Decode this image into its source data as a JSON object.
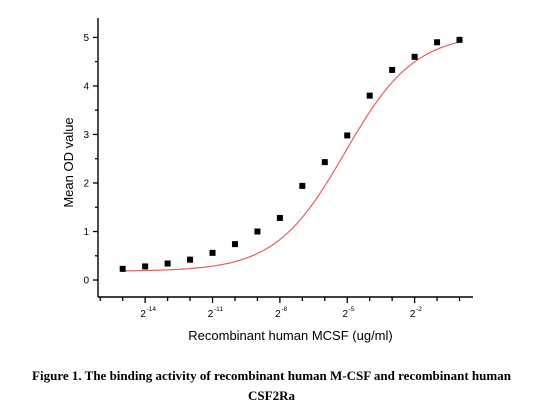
{
  "chart_data": {
    "type": "scatter",
    "fit_line": true,
    "xlabel": "Recombinant human  MCSF (ug/ml)",
    "ylabel": "Mean OD value",
    "x_scale": "log2",
    "x_tick_labels": [
      {
        "base": "2",
        "exp": "-14",
        "log2": -14
      },
      {
        "base": "2",
        "exp": "-11",
        "log2": -11
      },
      {
        "base": "2",
        "exp": "-8",
        "log2": -8
      },
      {
        "base": "2",
        "exp": "-5",
        "log2": -5
      },
      {
        "base": "2",
        "exp": "-2",
        "log2": -2
      }
    ],
    "xlim_log2": [
      -16.1,
      0.6
    ],
    "ylim": [
      -0.35,
      5.4
    ],
    "y_ticks": [
      0,
      1,
      2,
      3,
      4,
      5
    ],
    "series": [
      {
        "color": "#000000",
        "fit_color": "#e06060",
        "x_log2": [
          -15,
          -14,
          -13,
          -12,
          -11,
          -10,
          -9,
          -8,
          -7,
          -6,
          -5,
          -4,
          -3,
          -2,
          -1,
          0
        ],
        "y": [
          0.23,
          0.28,
          0.34,
          0.42,
          0.56,
          0.74,
          1.0,
          1.28,
          1.94,
          2.43,
          2.98,
          3.8,
          4.33,
          4.6,
          4.9,
          4.95
        ]
      }
    ],
    "grid": false,
    "legend": "none"
  },
  "caption": {
    "line1": "Figure 1. The binding activity of recombinant human M-CSF and recombinant human",
    "line2": "CSF2Ra"
  }
}
